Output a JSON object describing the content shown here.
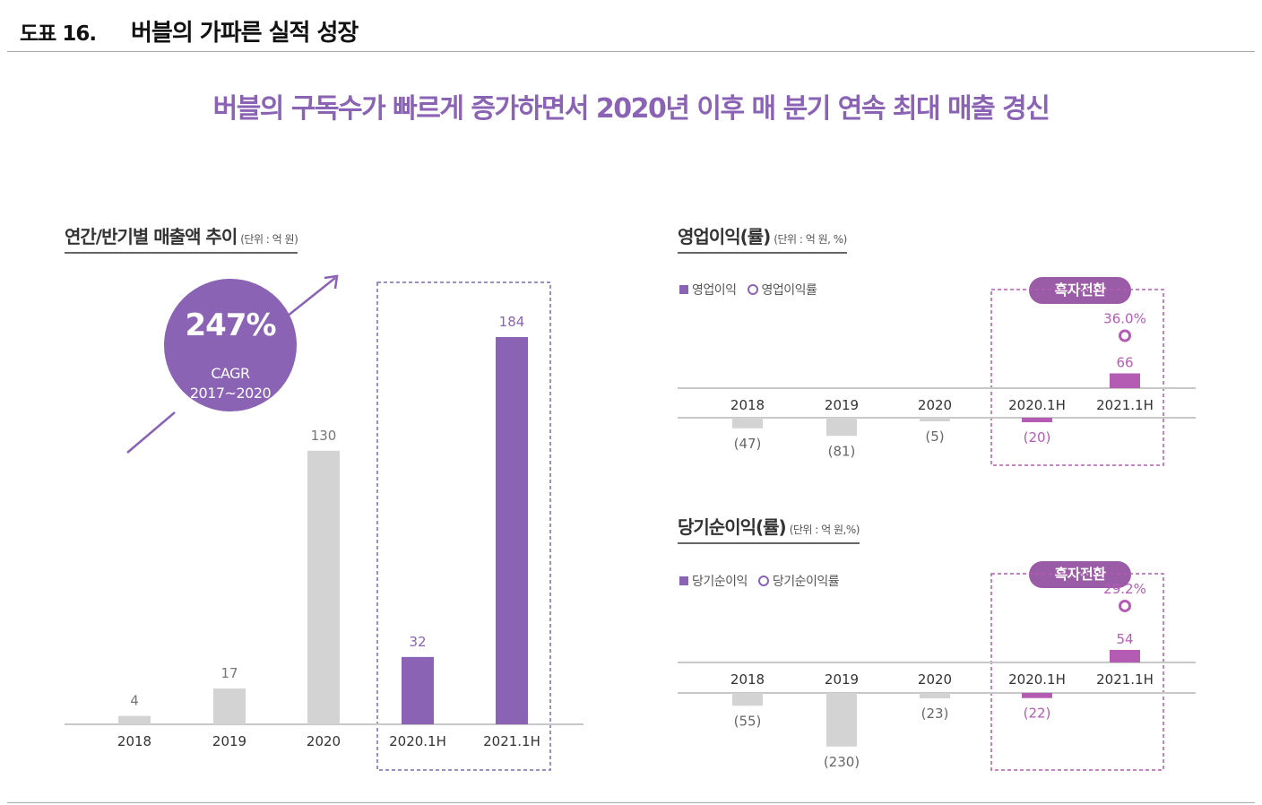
{
  "figure": {
    "number": "도표 16.",
    "title": "버블의 가파른 실적 성장"
  },
  "headline": "버블의 구독수가 빠르게 증가하면서 2020년 이후 매 분기 연속 최대 매출 경신",
  "colors": {
    "accent": "#8a63b4",
    "gray_bar": "#d3d3d3",
    "highlight": "#b45cb4",
    "pill": "#9b5ca7"
  },
  "badge": {
    "value": "247%",
    "label1": "CAGR",
    "label2": "2017~2020"
  },
  "sections": {
    "revenue": {
      "title": "연간/반기별 매출액 추이",
      "unit": "(단위 : 억 원)"
    },
    "op": {
      "title": "영업이익(률)",
      "unit": "(단위 : 억 원, %)",
      "legend_bar": "영업이익",
      "legend_rate": "영업이익률",
      "pill": "흑자전환"
    },
    "net": {
      "title": "당기순이익(률)",
      "unit": "(단위 : 억 원,%)",
      "legend_bar": "당기순이익",
      "legend_rate": "당기순이익률",
      "pill": "흑자전환"
    }
  },
  "chart_data": [
    {
      "type": "bar",
      "title": "연간/반기별 매출액 추이",
      "unit": "억 원",
      "categories": [
        "2018",
        "2019",
        "2020",
        "2020.1H",
        "2021.1H"
      ],
      "values": [
        4,
        17,
        130,
        32,
        184
      ],
      "labels": [
        "4",
        "17",
        "130",
        "32",
        "184"
      ],
      "highlighted": [
        false,
        false,
        false,
        true,
        true
      ],
      "ylim": [
        0,
        184
      ]
    },
    {
      "type": "bar",
      "title": "영업이익(률)",
      "unit": "억 원, %",
      "categories": [
        "2018",
        "2019",
        "2020",
        "2020.1H",
        "2021.1H"
      ],
      "values": [
        -47,
        -81,
        -5,
        -20,
        66
      ],
      "labels": [
        "(47)",
        "(81)",
        "(5)",
        "(20)",
        "66"
      ],
      "highlighted": [
        false,
        false,
        false,
        true,
        true
      ],
      "rate": {
        "category": "2021.1H",
        "value": 36.0,
        "label": "36.0%"
      }
    },
    {
      "type": "bar",
      "title": "당기순이익(률)",
      "unit": "억 원, %",
      "categories": [
        "2018",
        "2019",
        "2020",
        "2020.1H",
        "2021.1H"
      ],
      "values": [
        -55,
        -230,
        -23,
        -22,
        54
      ],
      "labels": [
        "(55)",
        "(230)",
        "(23)",
        "(22)",
        "54"
      ],
      "highlighted": [
        false,
        false,
        false,
        true,
        true
      ],
      "rate": {
        "category": "2021.1H",
        "value": 29.2,
        "label": "29.2%"
      }
    }
  ]
}
